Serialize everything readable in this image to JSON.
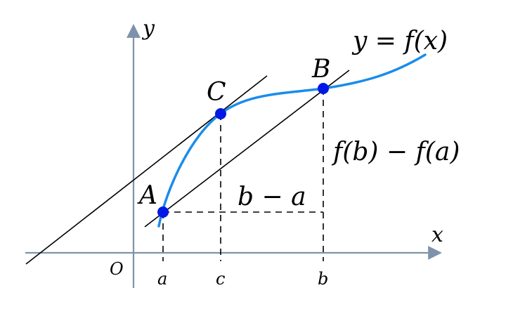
{
  "axes": {
    "x_label": "x",
    "y_label": "y",
    "origin_label": "O",
    "axis_color": "#7e93aa"
  },
  "ticks": {
    "a": "a",
    "c": "c",
    "b": "b"
  },
  "points": {
    "A": "A",
    "B": "B",
    "C": "C",
    "color": "#0018e6"
  },
  "curve": {
    "label": "y = f(x)",
    "color": "#1a8ceb"
  },
  "annotations": {
    "horizontal": "b − a",
    "vertical": "f(b) − f(a)"
  }
}
